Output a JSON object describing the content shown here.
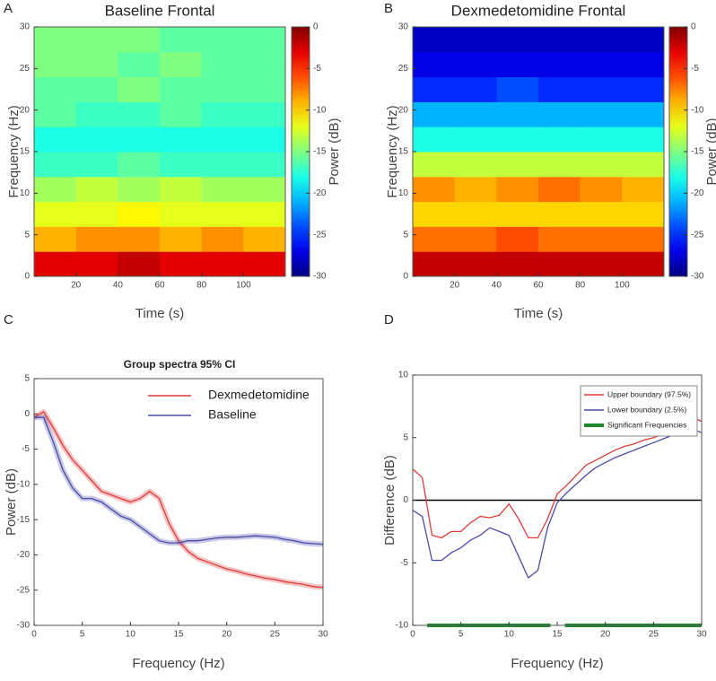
{
  "chart_data": [
    {
      "type": "heatmap",
      "panel_label": "A",
      "title": "Baseline Frontal",
      "xlabel": "Time (s)",
      "ylabel": "Frequency (Hz)",
      "colorbar_label": "Power (dB)",
      "x_bins": [
        0,
        20,
        40,
        60,
        80,
        100,
        120
      ],
      "y_bins": [
        0,
        3,
        6,
        9,
        12,
        15,
        18,
        21,
        24,
        27,
        30
      ],
      "values": [
        [
          -3,
          -3,
          -2,
          -3,
          -3,
          -3
        ],
        [
          -9,
          -8,
          -8,
          -9,
          -8,
          -9
        ],
        [
          -12,
          -12,
          -11,
          -12,
          -12,
          -12
        ],
        [
          -14,
          -13,
          -14,
          -13,
          -14,
          -14
        ],
        [
          -17,
          -17,
          -16,
          -17,
          -17,
          -17
        ],
        [
          -18,
          -18,
          -18,
          -18,
          -18,
          -18
        ],
        [
          -16,
          -17,
          -17,
          -16,
          -17,
          -17
        ],
        [
          -16,
          -16,
          -15,
          -16,
          -16,
          -16
        ],
        [
          -15,
          -15,
          -16,
          -15,
          -16,
          -16
        ],
        [
          -15,
          -15,
          -15,
          -16,
          -16,
          -16
        ]
      ],
      "xlim": [
        0,
        120
      ],
      "xticks": [
        20,
        40,
        60,
        80,
        100
      ],
      "ylim": [
        0,
        30
      ],
      "yticks": [
        0,
        5,
        10,
        15,
        20,
        25,
        30
      ],
      "clim": [
        -30,
        0
      ],
      "cticks": [
        0,
        -5,
        -10,
        -15,
        -20,
        -25,
        -30
      ],
      "colormap": "jet"
    },
    {
      "type": "heatmap",
      "panel_label": "B",
      "title": "Dexmedetomidine Frontal",
      "xlabel": "Time (s)",
      "ylabel": "Frequency (Hz)",
      "colorbar_label": "Power (dB)",
      "x_bins": [
        0,
        20,
        40,
        60,
        80,
        100,
        120
      ],
      "y_bins": [
        0,
        3,
        6,
        9,
        12,
        15,
        18,
        21,
        24,
        27,
        30
      ],
      "values": [
        [
          -2,
          -2,
          -2,
          -2,
          -2,
          -2
        ],
        [
          -7,
          -7,
          -6,
          -7,
          -7,
          -7
        ],
        [
          -10,
          -10,
          -10,
          -10,
          -10,
          -10
        ],
        [
          -8,
          -9,
          -8,
          -7,
          -8,
          -9
        ],
        [
          -13,
          -13,
          -13,
          -13,
          -13,
          -13
        ],
        [
          -18,
          -18,
          -18,
          -18,
          -18,
          -18
        ],
        [
          -21,
          -21,
          -21,
          -21,
          -21,
          -21
        ],
        [
          -25,
          -25,
          -24,
          -25,
          -25,
          -25
        ],
        [
          -27,
          -27,
          -27,
          -27,
          -27,
          -27
        ],
        [
          -28,
          -28,
          -28,
          -28,
          -28,
          -28
        ]
      ],
      "xlim": [
        0,
        120
      ],
      "xticks": [
        20,
        40,
        60,
        80,
        100
      ],
      "ylim": [
        0,
        30
      ],
      "yticks": [
        0,
        5,
        10,
        15,
        20,
        25,
        30
      ],
      "clim": [
        -30,
        0
      ],
      "cticks": [
        0,
        -5,
        -10,
        -15,
        -20,
        -25,
        -30
      ],
      "colormap": "jet"
    },
    {
      "type": "line",
      "panel_label": "C",
      "title": "Group spectra 95% CI",
      "xlabel": "Frequency (Hz)",
      "ylabel": "Power (dB)",
      "x": [
        0,
        1,
        2,
        3,
        4,
        5,
        6,
        7,
        8,
        9,
        10,
        11,
        12,
        13,
        14,
        15,
        16,
        17,
        18,
        19,
        20,
        21,
        22,
        23,
        24,
        25,
        26,
        27,
        28,
        29,
        30
      ],
      "series": [
        {
          "name": "Dexmedetomidine",
          "color": "#e03a3a",
          "values": [
            -0.5,
            0.3,
            -2,
            -4.5,
            -6.5,
            -8,
            -9.5,
            -11,
            -11.5,
            -12,
            -12.5,
            -12,
            -11,
            -12,
            -15.5,
            -18,
            -19.5,
            -20.5,
            -21,
            -21.5,
            -22,
            -22.3,
            -22.7,
            -23,
            -23.3,
            -23.5,
            -23.8,
            -24,
            -24.2,
            -24.5,
            -24.6
          ]
        },
        {
          "name": "Baseline",
          "color": "#4a4aa8",
          "values": [
            -0.5,
            -0.5,
            -4,
            -8,
            -10.5,
            -12,
            -12,
            -12.5,
            -13.5,
            -14.5,
            -15,
            -16,
            -17,
            -18,
            -18.3,
            -18.3,
            -18,
            -18,
            -17.8,
            -17.6,
            -17.5,
            -17.5,
            -17.4,
            -17.3,
            -17.4,
            -17.5,
            -17.8,
            -18,
            -18.3,
            -18.4,
            -18.5
          ]
        }
      ],
      "xlim": [
        0,
        30
      ],
      "xticks": [
        0,
        5,
        10,
        15,
        20,
        25,
        30
      ],
      "ylim": [
        -30,
        5
      ],
      "yticks": [
        -30,
        -25,
        -20,
        -15,
        -10,
        -5,
        0,
        5
      ],
      "legend": "upper right",
      "band": true
    },
    {
      "type": "line",
      "panel_label": "D",
      "xlabel": "Frequency (Hz)",
      "ylabel": "Difference (dB)",
      "x": [
        0,
        1,
        2,
        3,
        4,
        5,
        6,
        7,
        8,
        9,
        10,
        11,
        12,
        13,
        14,
        15,
        16,
        17,
        18,
        19,
        20,
        21,
        22,
        23,
        24,
        25,
        26,
        27,
        28,
        29,
        30
      ],
      "series": [
        {
          "name": "Upper boundary (97.5%)",
          "color": "#e03a3a",
          "values": [
            2.5,
            1.8,
            -2.8,
            -3,
            -2.5,
            -2.5,
            -1.8,
            -1.3,
            -1.4,
            -1.2,
            -0.3,
            -1.5,
            -3,
            -3,
            -1.5,
            0.5,
            1.2,
            2,
            2.8,
            3.2,
            3.6,
            4,
            4.3,
            4.5,
            4.8,
            5,
            5.3,
            5.6,
            6,
            6.6,
            6.3
          ]
        },
        {
          "name": "Lower boundary (2.5%)",
          "color": "#4a4aa8",
          "values": [
            -0.8,
            -1.3,
            -4.8,
            -4.8,
            -4.2,
            -3.8,
            -3.2,
            -2.8,
            -2.2,
            -2.5,
            -2.8,
            -4.5,
            -6.2,
            -5.6,
            -2.2,
            -0.2,
            0.6,
            1.3,
            2,
            2.6,
            3,
            3.4,
            3.7,
            4,
            4.3,
            4.6,
            4.9,
            5.2,
            5.5,
            5.7,
            5.4
          ]
        },
        {
          "name": "Significant Frequencies",
          "color": "#1e8a2e",
          "x": [
            1.5,
            14.3,
            15,
            15.8,
            30
          ],
          "values": [
            -10,
            -10,
            null,
            -10,
            -10
          ]
        }
      ],
      "hline": 0,
      "xlim": [
        0,
        30
      ],
      "xticks": [
        0,
        5,
        10,
        15,
        20,
        25,
        30
      ],
      "ylim": [
        -10,
        10
      ],
      "yticks": [
        -10,
        -5,
        0,
        5,
        10
      ],
      "legend": "upper right",
      "legend_box": true
    }
  ]
}
